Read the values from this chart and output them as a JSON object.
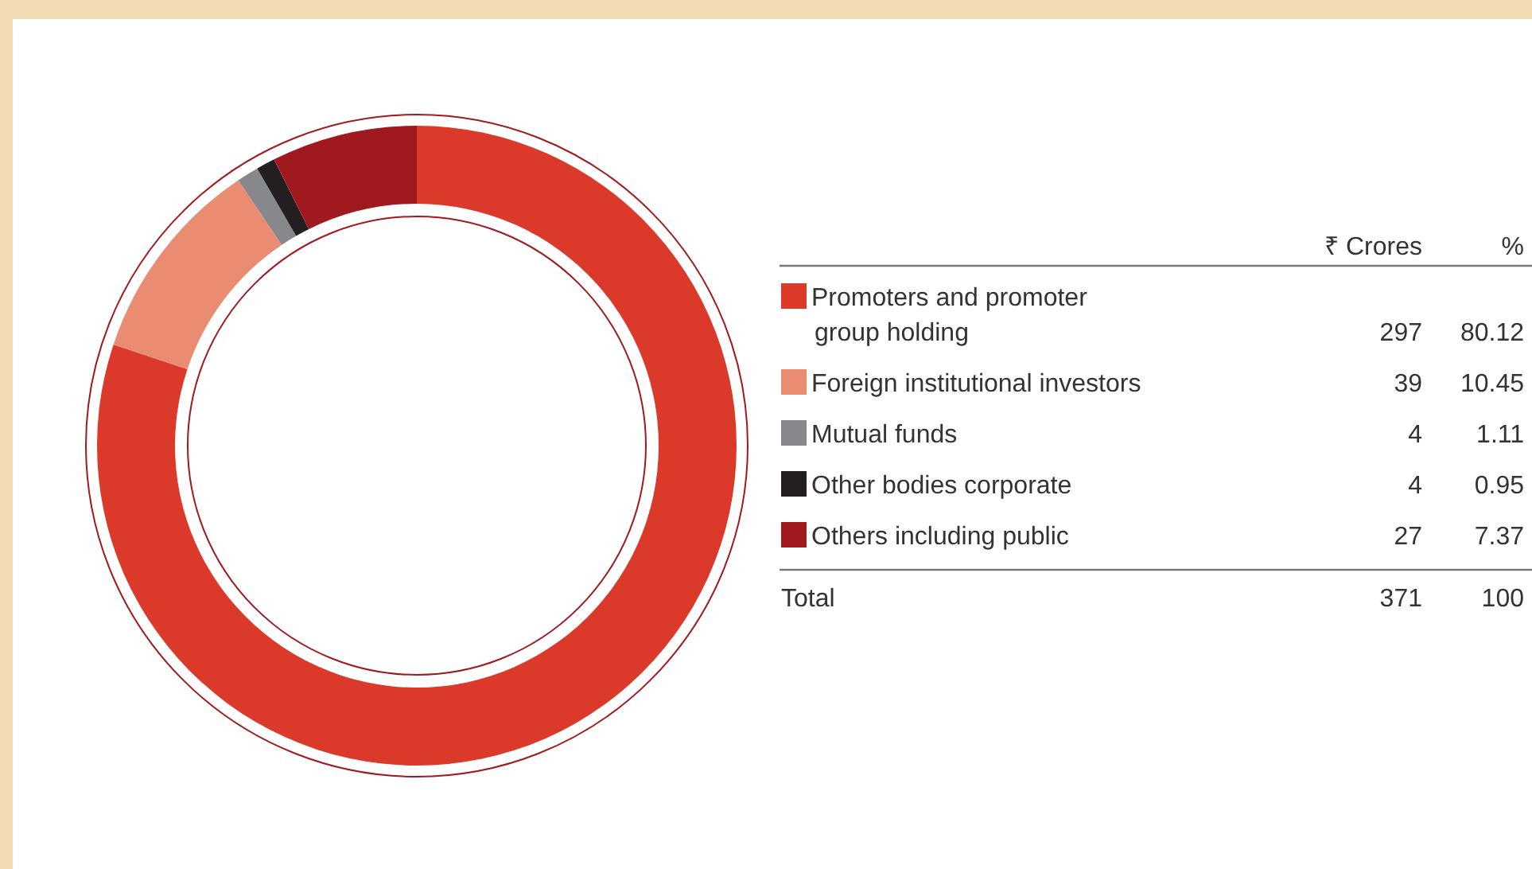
{
  "chart_data": {
    "type": "donut",
    "categories": [
      "Promoters and promoter group holding",
      "Foreign institutional investors",
      "Mutual funds",
      "Other bodies corporate",
      "Others including public"
    ],
    "values": [
      80.12,
      10.45,
      1.11,
      0.95,
      7.37
    ],
    "colors": [
      "#db3a2b",
      "#e98c72",
      "#87888c",
      "#231f20",
      "#a0191f"
    ],
    "data_labels": true,
    "annotations": [
      "₹ Crores",
      "%",
      "297",
      "39",
      "4",
      "4",
      "27",
      "Total",
      "371",
      "100"
    ],
    "legend": "right"
  }
}
